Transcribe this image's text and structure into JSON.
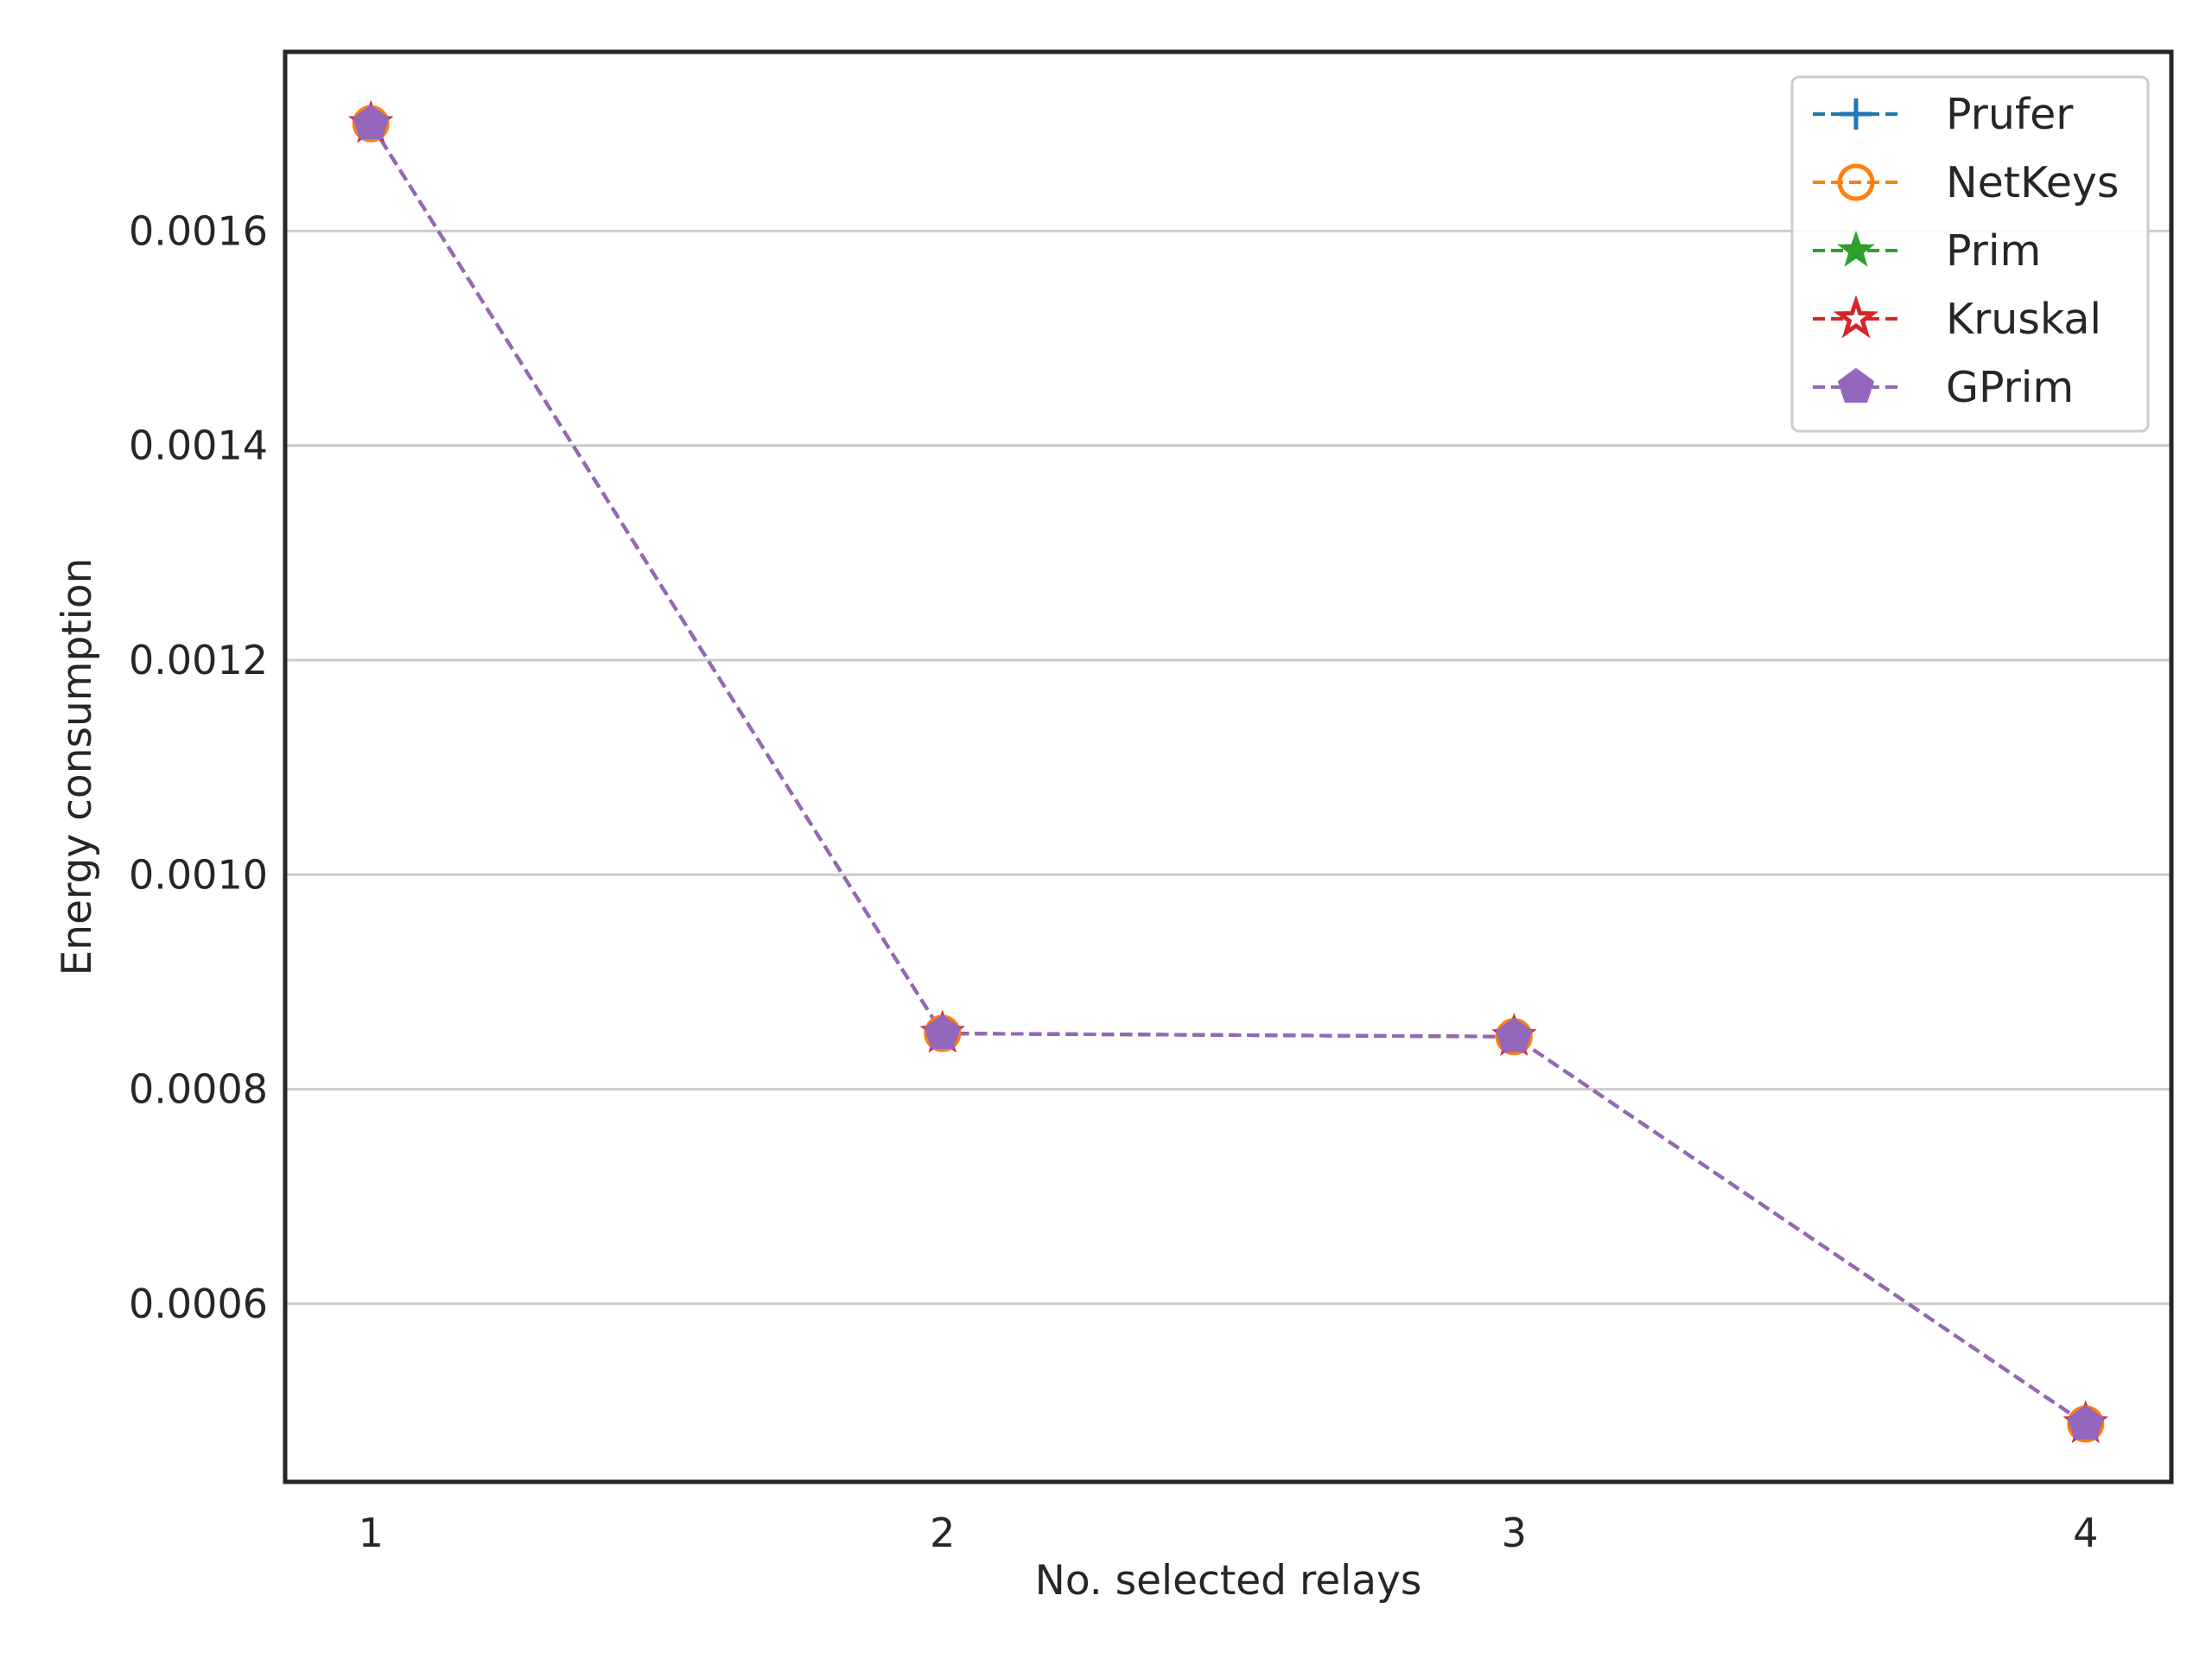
{
  "chart_data": {
    "type": "line",
    "title": "",
    "xlabel": "No. selected relays",
    "ylabel": "Energy consumption",
    "x": [
      1,
      2,
      3,
      4
    ],
    "xlim": [
      0.85,
      4.15
    ],
    "ylim": [
      0.000434,
      0.001767
    ],
    "xticks": [
      1,
      2,
      3,
      4
    ],
    "xtick_labels": [
      "1",
      "2",
      "3",
      "4"
    ],
    "yticks": [
      0.0006,
      0.0008,
      0.001,
      0.0012,
      0.0014,
      0.0016
    ],
    "ytick_labels": [
      "0.0006",
      "0.0008",
      "0.0010",
      "0.0012",
      "0.0014",
      "0.0016"
    ],
    "grid": {
      "y": true,
      "x": false
    },
    "legend_position": "top-right",
    "series": [
      {
        "name": "Prufer",
        "values": [
          0.0017,
          0.000852,
          0.000849,
          0.000488
        ],
        "color": "#1f77b4",
        "marker": "plus",
        "linestyle": "dashed"
      },
      {
        "name": "NetKeys",
        "values": [
          0.0017,
          0.000852,
          0.000849,
          0.000488
        ],
        "color": "#ff7f0e",
        "marker": "circle-open",
        "linestyle": "dashed"
      },
      {
        "name": "Prim",
        "values": [
          0.0017,
          0.000852,
          0.000849,
          0.000488
        ],
        "color": "#2ca02c",
        "marker": "star",
        "linestyle": "dashed"
      },
      {
        "name": "Kruskal",
        "values": [
          0.0017,
          0.000852,
          0.000849,
          0.000488
        ],
        "color": "#d62728",
        "marker": "star-open",
        "linestyle": "dashed"
      },
      {
        "name": "GPrim",
        "values": [
          0.0017,
          0.000852,
          0.000849,
          0.000488
        ],
        "color": "#9467bd",
        "marker": "pentagon",
        "linestyle": "dashed"
      }
    ]
  }
}
